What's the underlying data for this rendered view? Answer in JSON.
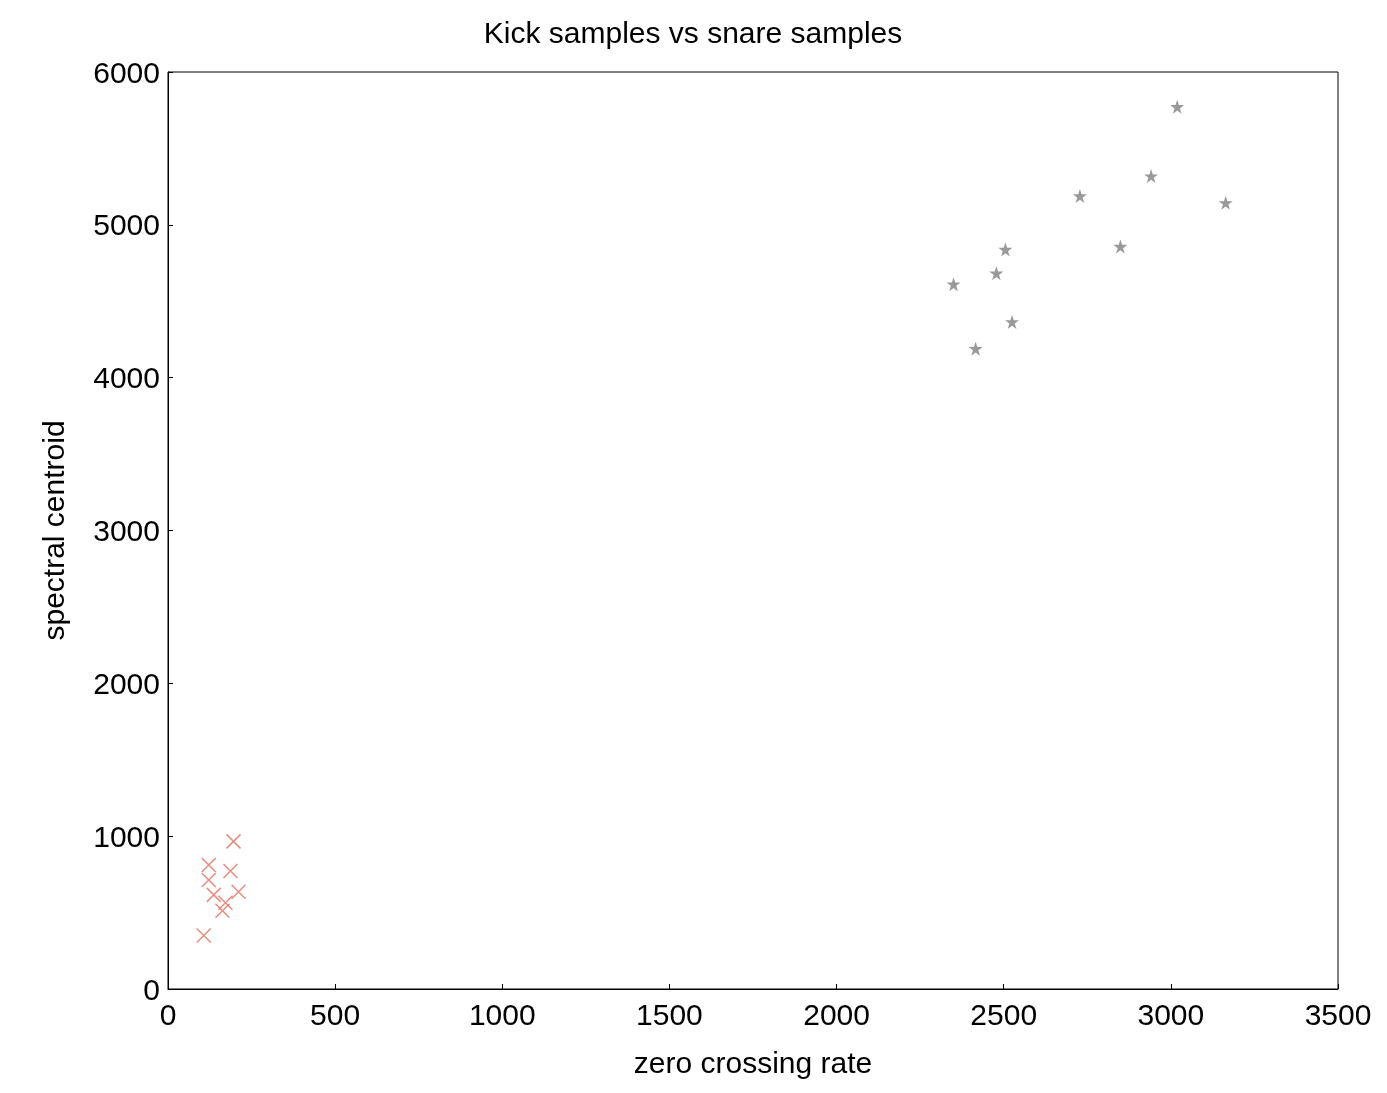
{
  "chart_data": {
    "type": "scatter",
    "title": "Kick samples vs snare samples",
    "xlabel": "zero crossing rate",
    "ylabel": "spectral centroid",
    "xlim": [
      0,
      3500
    ],
    "xticks": [
      0,
      500,
      1000,
      1500,
      2000,
      2500,
      3000,
      3500
    ],
    "ylim": [
      0,
      6000
    ],
    "yticks": [
      0,
      1000,
      2000,
      3000,
      4000,
      5000,
      6000
    ],
    "grid": false,
    "series": [
      {
        "color": "#e07060",
        "marker": "cross",
        "x": [
          196,
          122,
          187,
          122,
          137,
          211,
          172,
          163,
          107
        ],
        "values": [
          966,
          811,
          772,
          713,
          616,
          636,
          564,
          512,
          350
        ]
      },
      {
        "color": "#808080",
        "marker": "star",
        "x": [
          3019,
          2941,
          2728,
          3164,
          2505,
          2849,
          2478,
          2350,
          2525,
          2416
        ],
        "values": [
          5773,
          5319,
          5189,
          5144,
          4839,
          4858,
          4683,
          4612,
          4365,
          4190
        ]
      }
    ]
  }
}
